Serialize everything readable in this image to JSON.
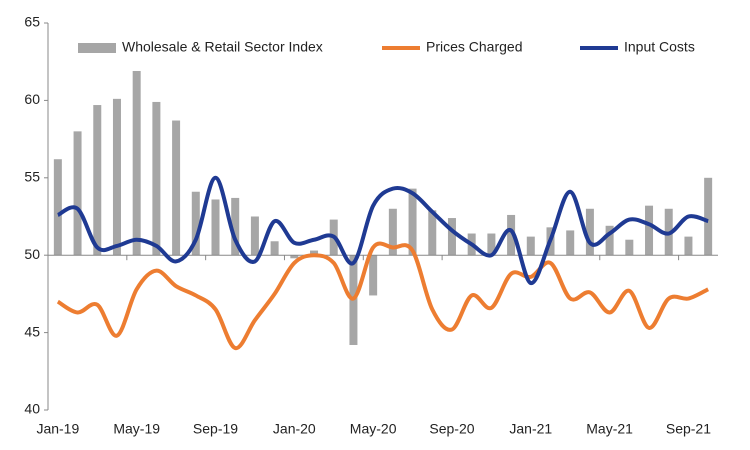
{
  "chart_data": {
    "type": "bar_line",
    "categories": [
      "Jan-19",
      null,
      null,
      null,
      "May-19",
      null,
      null,
      null,
      "Sep-19",
      null,
      null,
      null,
      "Jan-20",
      null,
      null,
      null,
      "May-20",
      null,
      null,
      null,
      "Sep-20",
      null,
      null,
      null,
      "Jan-21",
      null,
      null,
      null,
      "May-21",
      null,
      null,
      null,
      "Sep-21",
      null
    ],
    "series": [
      {
        "name": "Wholesale & Retail Sector Index",
        "kind": "bar",
        "color": "#a6a6a6",
        "values": [
          56.2,
          58.0,
          59.7,
          60.1,
          61.9,
          59.9,
          58.7,
          54.1,
          53.6,
          53.7,
          52.5,
          50.9,
          49.8,
          50.3,
          52.3,
          44.2,
          47.4,
          53.0,
          54.3,
          52.9,
          52.4,
          51.4,
          51.4,
          52.6,
          51.2,
          51.8,
          51.6,
          53.0,
          51.9,
          51.0,
          53.2,
          53.0,
          51.2,
          55.0
        ]
      },
      {
        "name": "Prices Charged",
        "kind": "line",
        "color": "#ed7d31",
        "values": [
          47.0,
          46.3,
          46.8,
          44.8,
          47.8,
          49.0,
          48.0,
          47.4,
          46.5,
          44.0,
          45.8,
          47.5,
          49.5,
          50.0,
          49.5,
          47.2,
          50.5,
          50.5,
          50.3,
          46.5,
          45.2,
          47.4,
          46.6,
          48.8,
          48.6,
          49.5,
          47.2,
          47.6,
          46.3,
          47.7,
          45.3,
          47.2,
          47.2,
          47.8
        ]
      },
      {
        "name": "Input Costs",
        "kind": "line",
        "color": "#1f3a93",
        "values": [
          52.6,
          53.0,
          50.5,
          50.6,
          51.0,
          50.6,
          49.6,
          51.0,
          55.0,
          51.0,
          49.6,
          52.2,
          50.8,
          51.0,
          51.2,
          49.5,
          53.2,
          54.3,
          54.0,
          52.8,
          51.6,
          50.7,
          50.0,
          51.6,
          48.2,
          51.0,
          54.1,
          50.8,
          51.4,
          52.3,
          52.0,
          51.4,
          52.5,
          52.2
        ]
      }
    ],
    "ylim": [
      40,
      65
    ],
    "yticks": [
      40,
      45,
      50,
      55,
      60,
      65
    ],
    "x_axis_crosses": 50,
    "grid": false,
    "legend": "top"
  }
}
